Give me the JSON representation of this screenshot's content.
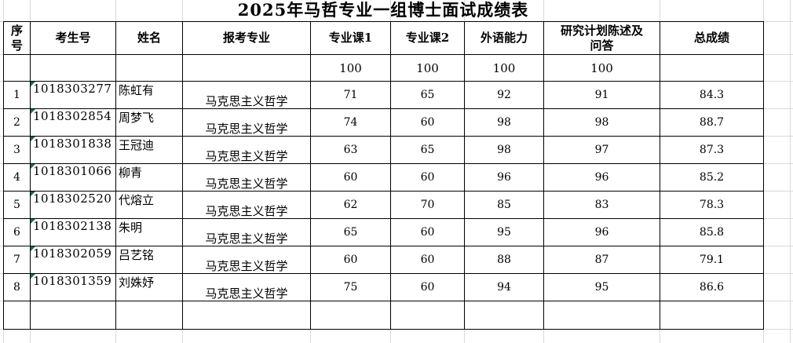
{
  "title": "2025年马哲专业一组博士面试成绩表",
  "colors": {
    "table_border": "#000000",
    "gridline": "#d9d9d9",
    "format_indicator_green": "#1f6b3e"
  },
  "table": {
    "headers": {
      "no": "序号",
      "id": "考生号",
      "name": "姓名",
      "major": "报考专业",
      "course1": "专业课1",
      "course2": "专业课2",
      "foreign": "外语能力",
      "research": "研究计划陈述及问答",
      "total": "总成绩"
    },
    "max_row": {
      "course1": "100",
      "course2": "100",
      "foreign": "100",
      "research": "100"
    },
    "rows": [
      {
        "no": "1",
        "id": "1018303277",
        "name": "陈虹有",
        "major": "马克思主义哲学",
        "course1": "71",
        "course2": "65",
        "foreign": "92",
        "research": "91",
        "total": "84.3"
      },
      {
        "no": "2",
        "id": "1018302854",
        "name": "周梦飞",
        "major": "马克思主义哲学",
        "course1": "74",
        "course2": "60",
        "foreign": "98",
        "research": "98",
        "total": "88.7"
      },
      {
        "no": "3",
        "id": "1018301838",
        "name": "王冠迪",
        "major": "马克思主义哲学",
        "course1": "63",
        "course2": "65",
        "foreign": "98",
        "research": "97",
        "total": "87.3"
      },
      {
        "no": "4",
        "id": "1018301066",
        "name": "柳青",
        "major": "马克思主义哲学",
        "course1": "60",
        "course2": "60",
        "foreign": "96",
        "research": "96",
        "total": "85.2"
      },
      {
        "no": "5",
        "id": "1018302520",
        "name": "代熔立",
        "major": "马克思主义哲学",
        "course1": "62",
        "course2": "70",
        "foreign": "85",
        "research": "83",
        "total": "78.3"
      },
      {
        "no": "6",
        "id": "1018302138",
        "name": "朱明",
        "major": "马克思主义哲学",
        "course1": "65",
        "course2": "60",
        "foreign": "95",
        "research": "96",
        "total": "85.8"
      },
      {
        "no": "7",
        "id": "1018302059",
        "name": "吕艺铭",
        "major": "马克思主义哲学",
        "course1": "60",
        "course2": "60",
        "foreign": "88",
        "research": "87",
        "total": "79.1"
      },
      {
        "no": "8",
        "id": "1018301359",
        "name": "刘姝妤",
        "major": "马克思主义哲学",
        "course1": "75",
        "course2": "60",
        "foreign": "94",
        "research": "95",
        "total": "86.6"
      }
    ]
  }
}
